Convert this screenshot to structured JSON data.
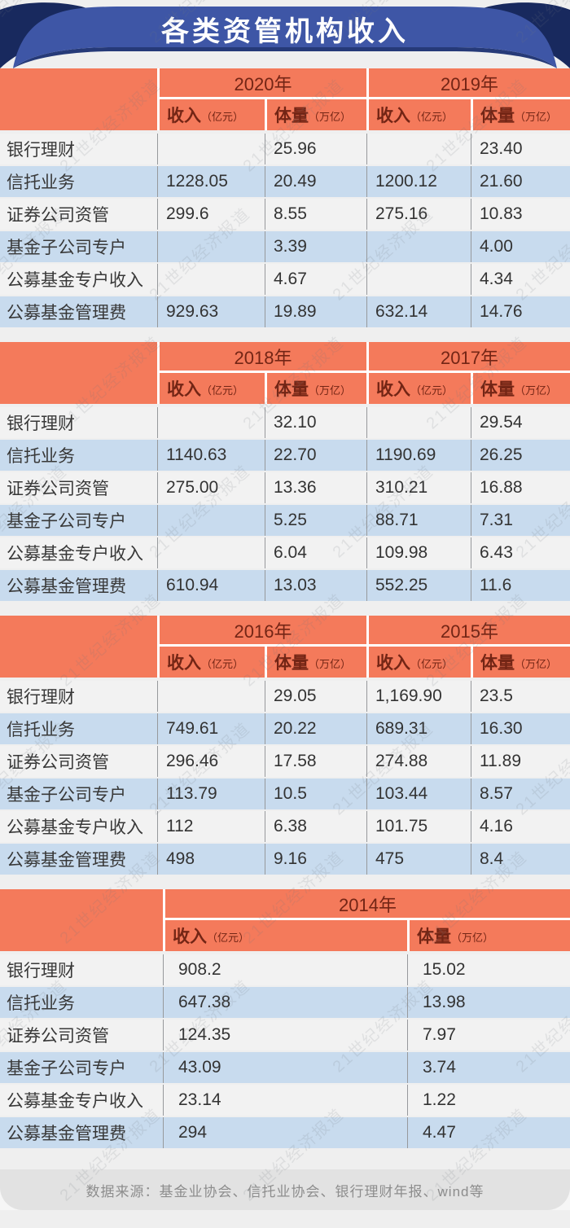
{
  "title": "各类资管机构收入",
  "watermark": "21世纪经济报道",
  "source_note": "数据来源：基金业协会、信托业协会、银行理财年报、wind等",
  "headers": {
    "income_label": "收入",
    "income_unit": "（亿元）",
    "volume_label": "体量",
    "volume_unit": "（万亿）"
  },
  "colors": {
    "banner_blue": "#3e56a6",
    "ribbon_navy": "#18295e",
    "header_salmon": "#f47a5b",
    "header_text": "#732515",
    "row_blue": "#c8dbee",
    "row_light": "#f2f2f2",
    "page_bg": "#efefef",
    "footer_bg": "#e2e2e2",
    "body_text": "#333333",
    "source_text": "#8d8d8d",
    "divider_gray": "#97999c"
  },
  "tables": [
    {
      "years": [
        "2020年",
        "2019年"
      ],
      "rows": [
        {
          "label": "银行理财",
          "values": [
            "",
            "25.96",
            "",
            "23.40"
          ]
        },
        {
          "label": "信托业务",
          "values": [
            "1228.05",
            "20.49",
            "1200.12",
            "21.60"
          ]
        },
        {
          "label": "证券公司资管",
          "values": [
            "299.6",
            "8.55",
            "275.16",
            "10.83"
          ]
        },
        {
          "label": "基金子公司专户",
          "values": [
            "",
            "3.39",
            "",
            "4.00"
          ]
        },
        {
          "label": "公募基金专户收入",
          "values": [
            "",
            "4.67",
            "",
            "4.34"
          ]
        },
        {
          "label": "公募基金管理费",
          "values": [
            "929.63",
            "19.89",
            "632.14",
            "14.76"
          ]
        }
      ]
    },
    {
      "years": [
        "2018年",
        "2017年"
      ],
      "rows": [
        {
          "label": "银行理财",
          "values": [
            "",
            "32.10",
            "",
            "29.54"
          ]
        },
        {
          "label": "信托业务",
          "values": [
            "1140.63",
            "22.70",
            "1190.69",
            "26.25"
          ]
        },
        {
          "label": "证券公司资管",
          "values": [
            "275.00",
            "13.36",
            "310.21",
            "16.88"
          ]
        },
        {
          "label": "基金子公司专户",
          "values": [
            "",
            "5.25",
            "88.71",
            "7.31"
          ]
        },
        {
          "label": "公募基金专户收入",
          "values": [
            "",
            "6.04",
            "109.98",
            "6.43"
          ]
        },
        {
          "label": "公募基金管理费",
          "values": [
            "610.94",
            "13.03",
            "552.25",
            "11.6"
          ]
        }
      ]
    },
    {
      "years": [
        "2016年",
        "2015年"
      ],
      "rows": [
        {
          "label": "银行理财",
          "values": [
            "",
            "29.05",
            "1,169.90",
            "23.5"
          ]
        },
        {
          "label": "信托业务",
          "values": [
            "749.61",
            "20.22",
            "689.31",
            "16.30"
          ]
        },
        {
          "label": "证券公司资管",
          "values": [
            "296.46",
            "17.58",
            "274.88",
            "11.89"
          ]
        },
        {
          "label": "基金子公司专户",
          "values": [
            "113.79",
            "10.5",
            "103.44",
            "8.57"
          ]
        },
        {
          "label": "公募基金专户收入",
          "values": [
            "112",
            "6.38",
            "101.75",
            "4.16"
          ]
        },
        {
          "label": "公募基金管理费",
          "values": [
            "498",
            "9.16",
            "475",
            "8.4"
          ]
        }
      ]
    },
    {
      "years": [
        "2014年"
      ],
      "rows": [
        {
          "label": "银行理财",
          "values": [
            "908.2",
            "15.02"
          ]
        },
        {
          "label": "信托业务",
          "values": [
            "647.38",
            "13.98"
          ]
        },
        {
          "label": "证券公司资管",
          "values": [
            "124.35",
            "7.97"
          ]
        },
        {
          "label": "基金子公司专户",
          "values": [
            "43.09",
            "3.74"
          ]
        },
        {
          "label": "公募基金专户收入",
          "values": [
            "23.14",
            "1.22"
          ]
        },
        {
          "label": "公募基金管理费",
          "values": [
            "294",
            "4.47"
          ]
        }
      ]
    }
  ],
  "chart_data": [
    {
      "type": "table",
      "title": "2020年 / 2019年",
      "columns": [
        "机构",
        "2020年收入（亿元）",
        "2020年体量（万亿）",
        "2019年收入（亿元）",
        "2019年体量（万亿）"
      ],
      "rows": [
        [
          "银行理财",
          null,
          25.96,
          null,
          23.4
        ],
        [
          "信托业务",
          1228.05,
          20.49,
          1200.12,
          21.6
        ],
        [
          "证券公司资管",
          299.6,
          8.55,
          275.16,
          10.83
        ],
        [
          "基金子公司专户",
          null,
          3.39,
          null,
          4.0
        ],
        [
          "公募基金专户收入",
          null,
          4.67,
          null,
          4.34
        ],
        [
          "公募基金管理费",
          929.63,
          19.89,
          632.14,
          14.76
        ]
      ]
    },
    {
      "type": "table",
      "title": "2018年 / 2017年",
      "columns": [
        "机构",
        "2018年收入（亿元）",
        "2018年体量（万亿）",
        "2017年收入（亿元）",
        "2017年体量（万亿）"
      ],
      "rows": [
        [
          "银行理财",
          null,
          32.1,
          null,
          29.54
        ],
        [
          "信托业务",
          1140.63,
          22.7,
          1190.69,
          26.25
        ],
        [
          "证券公司资管",
          275.0,
          13.36,
          310.21,
          16.88
        ],
        [
          "基金子公司专户",
          null,
          5.25,
          88.71,
          7.31
        ],
        [
          "公募基金专户收入",
          null,
          6.04,
          109.98,
          6.43
        ],
        [
          "公募基金管理费",
          610.94,
          13.03,
          552.25,
          11.6
        ]
      ]
    },
    {
      "type": "table",
      "title": "2016年 / 2015年",
      "columns": [
        "机构",
        "2016年收入（亿元）",
        "2016年体量（万亿）",
        "2015年收入（亿元）",
        "2015年体量（万亿）"
      ],
      "rows": [
        [
          "银行理财",
          null,
          29.05,
          1169.9,
          23.5
        ],
        [
          "信托业务",
          749.61,
          20.22,
          689.31,
          16.3
        ],
        [
          "证券公司资管",
          296.46,
          17.58,
          274.88,
          11.89
        ],
        [
          "基金子公司专户",
          113.79,
          10.5,
          103.44,
          8.57
        ],
        [
          "公募基金专户收入",
          112,
          6.38,
          101.75,
          4.16
        ],
        [
          "公募基金管理费",
          498,
          9.16,
          475,
          8.4
        ]
      ]
    },
    {
      "type": "table",
      "title": "2014年",
      "columns": [
        "机构",
        "2014年收入（亿元）",
        "2014年体量（万亿）"
      ],
      "rows": [
        [
          "银行理财",
          908.2,
          15.02
        ],
        [
          "信托业务",
          647.38,
          13.98
        ],
        [
          "证券公司资管",
          124.35,
          7.97
        ],
        [
          "基金子公司专户",
          43.09,
          3.74
        ],
        [
          "公募基金专户收入",
          23.14,
          1.22
        ],
        [
          "公募基金管理费",
          294,
          4.47
        ]
      ]
    }
  ]
}
